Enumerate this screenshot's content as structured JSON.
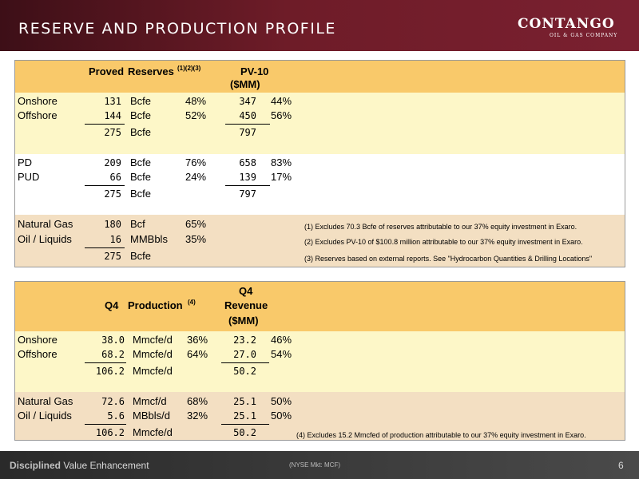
{
  "header": {
    "title": "RESERVE AND PRODUCTION PROFILE"
  },
  "logo": {
    "word": "CONTANGO",
    "sub": "OIL & GAS COMPANY"
  },
  "reserves": {
    "col_proved": "Proved",
    "col_reserves": "Reserves",
    "col_reserves_notes": "(1)(2)(3)",
    "col_pv10": "PV-10",
    "col_pv10_unit": "($MM)",
    "geo_rows": [
      {
        "label": "Onshore",
        "value": "131",
        "unit": "Bcfe",
        "pct": "48%",
        "pv": "347",
        "pv_pct": "44%"
      },
      {
        "label": "Offshore",
        "value": "144",
        "unit": "Bcfe",
        "pct": "52%",
        "pv": "450",
        "pv_pct": "56%"
      },
      {
        "label": "",
        "value": "275",
        "unit": "Bcfe",
        "pct": "",
        "pv": "797",
        "pv_pct": ""
      }
    ],
    "class_rows": [
      {
        "label": "PD",
        "value": "209",
        "unit": "Bcfe",
        "pct": "76%",
        "pv": "658",
        "pv_pct": "83%"
      },
      {
        "label": "PUD",
        "value": "66",
        "unit": "Bcfe",
        "pct": "24%",
        "pv": "139",
        "pv_pct": "17%"
      },
      {
        "label": "",
        "value": "275",
        "unit": "Bcfe",
        "pct": "",
        "pv": "797",
        "pv_pct": ""
      }
    ],
    "product_rows": [
      {
        "label": "Natural Gas",
        "value": "180",
        "unit": "Bcf",
        "pct": "65%"
      },
      {
        "label": "Oil / Liquids",
        "value": "16",
        "unit": "MMBbls",
        "pct": "35%"
      },
      {
        "label": "",
        "value": "275",
        "unit": "Bcfe",
        "pct": ""
      }
    ],
    "notes": [
      "(1) Excludes 70.3 Bcfe of reserves attributable to our 37% equity investment in Exaro.",
      "(2) Excludes PV-10 of $100.8 million attributable to our 37% equity investment in Exaro.",
      "(3) Reserves based on external reports. See \"Hydrocarbon Quantities & Drilling Locations\""
    ]
  },
  "production": {
    "col_q4": "Q4",
    "col_production": "Production",
    "col_production_note": "(4)",
    "col_rev_q4": "Q4",
    "col_revenue": "Revenue",
    "col_revenue_unit": "($MM)",
    "geo_rows": [
      {
        "label": "Onshore",
        "value": "38.0",
        "unit": "Mmcfe/d",
        "pct": "36%",
        "rev": "23.2",
        "rev_pct": "46%"
      },
      {
        "label": "Offshore",
        "value": "68.2",
        "unit": "Mmcfe/d",
        "pct": "64%",
        "rev": "27.0",
        "rev_pct": "54%"
      },
      {
        "label": "",
        "value": "106.2",
        "unit": "Mmcfe/d",
        "pct": "",
        "rev": "50.2",
        "rev_pct": ""
      }
    ],
    "product_rows": [
      {
        "label": "Natural Gas",
        "value": "72.6",
        "unit": "Mmcf/d",
        "pct": "68%",
        "rev": "25.1",
        "rev_pct": "50%"
      },
      {
        "label": "Oil / Liquids",
        "value": "5.6",
        "unit": "MBbls/d",
        "pct": "32%",
        "rev": "25.1",
        "rev_pct": "50%"
      },
      {
        "label": "",
        "value": "106.2",
        "unit": "Mmcfe/d",
        "pct": "",
        "rev": "50.2",
        "rev_pct": ""
      }
    ],
    "note": "(4) Excludes 15.2 Mmcfed of production attributable to our 37% equity investment in Exaro."
  },
  "footer": {
    "left_bold": "Disciplined",
    "left_rest": " Value Enhancement",
    "ticker": "(NYSE Mkt: MCF)",
    "page": "6"
  },
  "colors": {
    "header": "#6e1c28",
    "band_orange": "#f9c96a",
    "band_cream": "#fdf7c8",
    "band_tan": "#f3dfc2",
    "footer": "#3a3a3a"
  }
}
